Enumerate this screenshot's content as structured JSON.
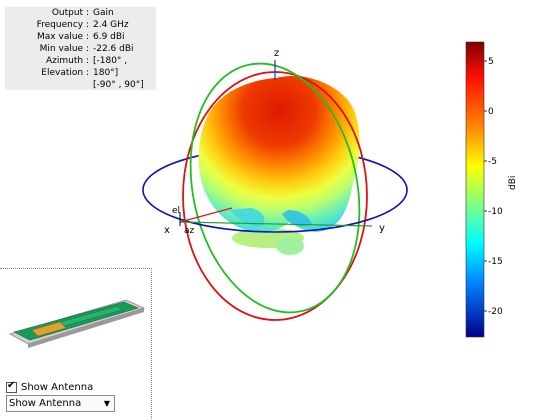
{
  "info_panel": [
    {
      "label": "Output",
      "value": "Gain"
    },
    {
      "label": "Frequency",
      "value": "2.4 GHz"
    },
    {
      "label": "Max value",
      "value": "6.9 dBi"
    },
    {
      "label": "Min value",
      "value": "-22.6 dBi"
    },
    {
      "label": "Azimuth",
      "value": "[-180° ,"
    },
    {
      "label": "Elevation",
      "value": "180°]"
    },
    {
      "label": "",
      "value": "[-90° , 90°]"
    }
  ],
  "axes": {
    "x": "x",
    "y": "y",
    "z": "z",
    "el": "el",
    "az": "az"
  },
  "colorbar": {
    "ticks": [
      "5",
      "0",
      "-5",
      "-10",
      "-15",
      "-20"
    ],
    "unit": "dBi",
    "max": 6.9,
    "min": -22.6
  },
  "controls": {
    "show_antenna_label": "Show Antenna",
    "show_antenna_checked": true,
    "dropdown_value": "Show Antenna"
  },
  "colors": {
    "great_circle_xy": "#1010c0",
    "great_circle_xz": "#e01010",
    "great_circle_yz": "#20c020",
    "pattern_top": "#e02000",
    "pcb": "#1a9a5a",
    "pad": "#e0a030"
  }
}
